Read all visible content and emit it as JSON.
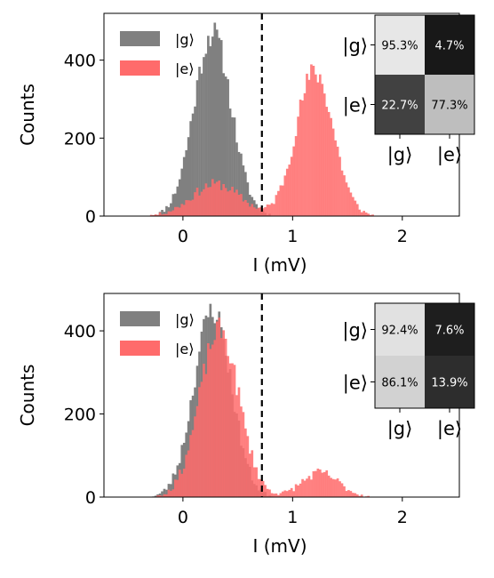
{
  "chart_data": [
    {
      "type": "histogram",
      "xlabel": "I (mV)",
      "ylabel": "Counts",
      "xlim": [
        -0.72,
        2.52
      ],
      "ylim": [
        0,
        520
      ],
      "xticks": [
        0,
        1,
        2
      ],
      "yticks": [
        0,
        200,
        400
      ],
      "threshold": 0.72,
      "legend_position": "top-left",
      "series": [
        {
          "name": "|g⟩",
          "color": "#808080",
          "components": [
            {
              "mu": 0.27,
              "sigma": 0.17,
              "amp": 470
            }
          ]
        },
        {
          "name": "|e⟩",
          "color": "#ff6b6b",
          "components": [
            {
              "mu": 1.2,
              "sigma": 0.17,
              "amp": 370
            },
            {
              "mu": 0.3,
              "sigma": 0.22,
              "amp": 82
            }
          ]
        }
      ],
      "confusion": {
        "row_labels": [
          "|g⟩",
          "|e⟩"
        ],
        "col_labels": [
          "|g⟩",
          "|e⟩"
        ],
        "values": [
          [
            "95.3%",
            "4.7%"
          ],
          [
            "22.7%",
            "77.3%"
          ]
        ],
        "fractions": [
          [
            0.953,
            0.047
          ],
          [
            0.227,
            0.773
          ]
        ]
      }
    },
    {
      "type": "histogram",
      "xlabel": "I (mV)",
      "ylabel": "Counts",
      "xlim": [
        -0.72,
        2.52
      ],
      "ylim": [
        0,
        490
      ],
      "xticks": [
        0,
        1,
        2
      ],
      "yticks": [
        0,
        200,
        400
      ],
      "threshold": 0.72,
      "legend_position": "top-left",
      "series": [
        {
          "name": "|g⟩",
          "color": "#808080",
          "components": [
            {
              "mu": 0.27,
              "sigma": 0.17,
              "amp": 450
            }
          ]
        },
        {
          "name": "|e⟩",
          "color": "#ff6b6b",
          "components": [
            {
              "mu": 0.33,
              "sigma": 0.18,
              "amp": 400
            },
            {
              "mu": 1.25,
              "sigma": 0.17,
              "amp": 58
            }
          ]
        }
      ],
      "confusion": {
        "row_labels": [
          "|g⟩",
          "|e⟩"
        ],
        "col_labels": [
          "|g⟩",
          "|e⟩"
        ],
        "values": [
          [
            "92.4%",
            "7.6%"
          ],
          [
            "86.1%",
            "13.9%"
          ]
        ],
        "fractions": [
          [
            0.924,
            0.076
          ],
          [
            0.861,
            0.139
          ]
        ]
      }
    }
  ]
}
